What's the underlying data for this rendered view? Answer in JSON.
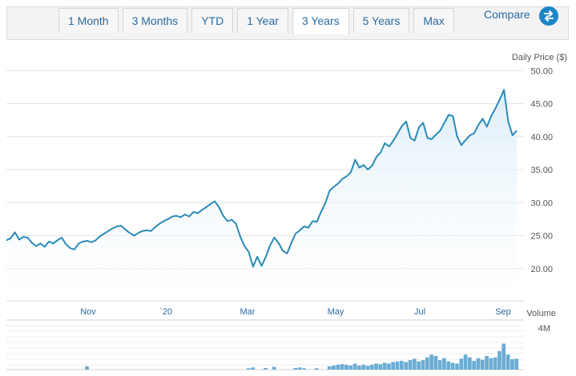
{
  "toolbar": {
    "tabs": [
      {
        "label": "1 Month",
        "active": false
      },
      {
        "label": "3 Months",
        "active": false
      },
      {
        "label": "YTD",
        "active": false
      },
      {
        "label": "1 Year",
        "active": false
      },
      {
        "label": "3 Years",
        "active": true
      },
      {
        "label": "5 Years",
        "active": false
      },
      {
        "label": "Max",
        "active": false
      }
    ],
    "compare_label": "Compare",
    "compare_icon": "swap-arrows-icon"
  },
  "colors": {
    "line": "#2a8ab8",
    "area_top": "#d9ecf8",
    "volume_bar": "#6aacd4",
    "grid": "#e3e3e3",
    "accent": "#1d86c8"
  },
  "chart_data": [
    {
      "type": "area",
      "ylabel": "Daily Price ($)",
      "ylim": [
        15,
        50
      ],
      "yticks": [
        "20.00",
        "25.00",
        "30.00",
        "35.00",
        "40.00",
        "45.00",
        "50.00"
      ],
      "x_month_labels": [
        "Nov",
        "`20",
        "Mar",
        "May",
        "Jul",
        "Sep"
      ],
      "grid": true,
      "series": [
        {
          "values": [
            24.3,
            24.6,
            25.5,
            24.4,
            24.8,
            24.7,
            23.9,
            23.4,
            23.8,
            23.3,
            24.1,
            23.8,
            24.3,
            24.7,
            23.7,
            23.1,
            22.9,
            23.8,
            24.1,
            24.2,
            24.0,
            24.3,
            24.9,
            25.3,
            25.7,
            26.1,
            26.4,
            26.5,
            25.9,
            25.4,
            25.0,
            25.4,
            25.7,
            25.8,
            25.7,
            26.3,
            26.8,
            27.2,
            27.5,
            27.9,
            28.0,
            27.8,
            28.2,
            27.9,
            28.6,
            28.4,
            28.9,
            29.3,
            29.8,
            30.2,
            29.3,
            28.0,
            27.2,
            27.4,
            26.8,
            24.8,
            23.4,
            22.5,
            20.3,
            21.8,
            20.4,
            21.8,
            23.5,
            24.7,
            23.9,
            22.7,
            22.3,
            23.9,
            25.3,
            25.8,
            26.4,
            26.2,
            27.2,
            27.1,
            28.6,
            29.9,
            31.8,
            32.4,
            32.9,
            33.6,
            34.0,
            34.6,
            36.5,
            35.3,
            35.7,
            35.0,
            35.6,
            36.9,
            37.6,
            39.0,
            38.5,
            39.4,
            40.5,
            41.6,
            42.3,
            39.8,
            39.4,
            41.4,
            42.1,
            39.8,
            39.6,
            40.3,
            40.9,
            42.1,
            43.3,
            43.1,
            40.0,
            38.7,
            39.5,
            40.2,
            40.5,
            41.8,
            42.7,
            41.5,
            43.1,
            44.3,
            45.6,
            47.1,
            42.3,
            40.2,
            40.9
          ]
        }
      ]
    },
    {
      "type": "bar",
      "ylabel": "Volume",
      "tick_label": "4M",
      "values": [
        0,
        0,
        0,
        0,
        0,
        0,
        0,
        0,
        0,
        0,
        0,
        0,
        0,
        0,
        0,
        0,
        0,
        0,
        0,
        0.12,
        0,
        0,
        0,
        0,
        0,
        0,
        0,
        0,
        0,
        0,
        0,
        0,
        0,
        0,
        0,
        0,
        0,
        0,
        0,
        0,
        0,
        0,
        0,
        0,
        0,
        0,
        0,
        0,
        0,
        0,
        0,
        0,
        0,
        0,
        0,
        0,
        0,
        0.05,
        0.08,
        0,
        0,
        0.06,
        0,
        0.1,
        0,
        0,
        0,
        0,
        0.06,
        0.08,
        0.05,
        0,
        0,
        0.05,
        0,
        0,
        0.12,
        0.15,
        0.18,
        0.2,
        0.18,
        0.15,
        0.22,
        0.15,
        0.18,
        0.14,
        0.18,
        0.22,
        0.2,
        0.25,
        0.22,
        0.28,
        0.3,
        0.32,
        0.28,
        0.35,
        0.4,
        0.3,
        0.35,
        0.45,
        0.55,
        0.5,
        0.35,
        0.42,
        0.3,
        0.25,
        0.22,
        0.4,
        0.55,
        0.45,
        0.32,
        0.42,
        0.36,
        0.5,
        0.42,
        0.45,
        0.68,
        0.95,
        0.55,
        0.38,
        0.4
      ]
    }
  ]
}
